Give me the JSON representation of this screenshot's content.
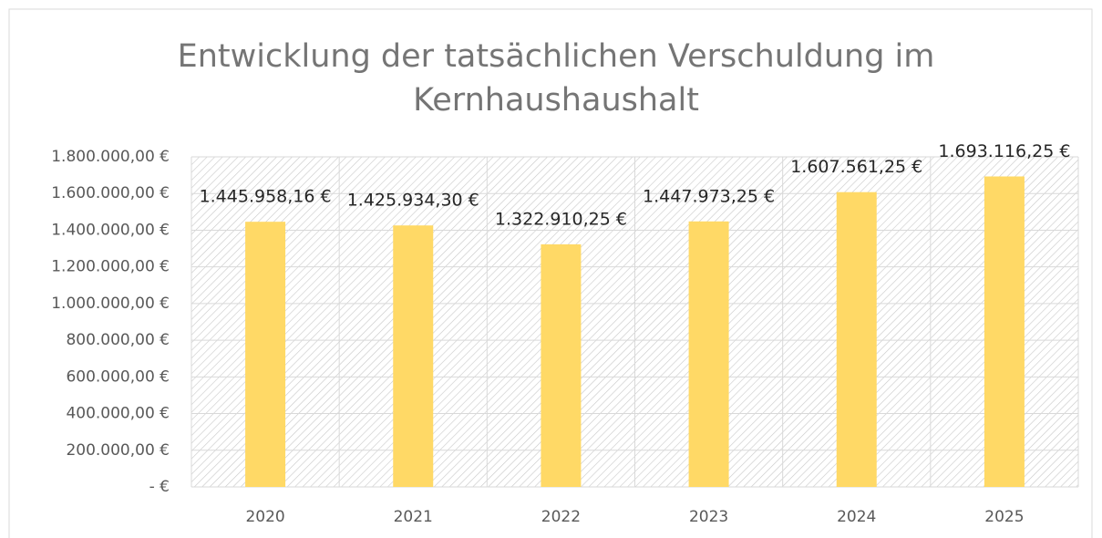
{
  "chart_data": {
    "type": "bar",
    "title": "Entwicklung der tatsächlichen Verschuldung im Kernhaushaushalt",
    "categories": [
      "2020",
      "2021",
      "2022",
      "2023",
      "2024",
      "2025"
    ],
    "values": [
      1445958.16,
      1425934.3,
      1322910.25,
      1447973.25,
      1607561.25,
      1693116.25
    ],
    "value_labels": [
      "1.445.958,16 €",
      "1.425.934,30 €",
      "1.322.910,25 €",
      "1.447.973,25 €",
      "1.607.561,25 €",
      "1.693.116,25 €"
    ],
    "color": "#ffd966",
    "ylim": [
      0,
      1800000
    ],
    "yticks": [
      {
        "value": 0,
        "label": "-  €"
      },
      {
        "value": 200000,
        "label": "200.000,00 €"
      },
      {
        "value": 400000,
        "label": "400.000,00 €"
      },
      {
        "value": 600000,
        "label": "600.000,00 €"
      },
      {
        "value": 800000,
        "label": "800.000,00 €"
      },
      {
        "value": 1000000,
        "label": "1.000.000,00 €"
      },
      {
        "value": 1200000,
        "label": "1.200.000,00 €"
      },
      {
        "value": 1400000,
        "label": "1.400.000,00 €"
      },
      {
        "value": 1600000,
        "label": "1.600.000,00 €"
      },
      {
        "value": 1800000,
        "label": "1.800.000,00 €"
      }
    ],
    "grid": true
  }
}
